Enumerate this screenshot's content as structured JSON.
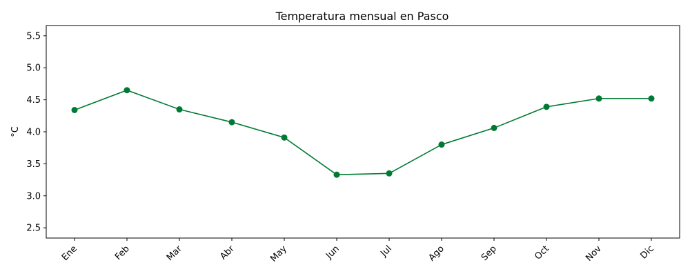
{
  "chart_data": {
    "type": "line",
    "title": "Temperatura mensual en Pasco",
    "xlabel": "",
    "ylabel": "°C",
    "categories": [
      "Ene",
      "Feb",
      "Mar",
      "Abr",
      "May",
      "Jun",
      "Jul",
      "Ago",
      "Sep",
      "Oct",
      "Nov",
      "Dic"
    ],
    "series": [
      {
        "values": [
          4.34,
          4.65,
          4.35,
          4.15,
          3.91,
          3.33,
          3.35,
          3.8,
          4.06,
          4.39,
          4.52,
          4.52
        ]
      }
    ],
    "ylim": [
      2.34,
      5.66
    ],
    "yticks": [
      2.5,
      3.0,
      3.5,
      4.0,
      4.5,
      5.0,
      5.5
    ],
    "ytick_labels": [
      "2.5",
      "3.0",
      "3.5",
      "4.0",
      "4.5",
      "5.0",
      "5.5"
    ],
    "grid": false,
    "line_color": "#007a33",
    "marker": "circle",
    "xtick_rotation_deg": 45
  }
}
